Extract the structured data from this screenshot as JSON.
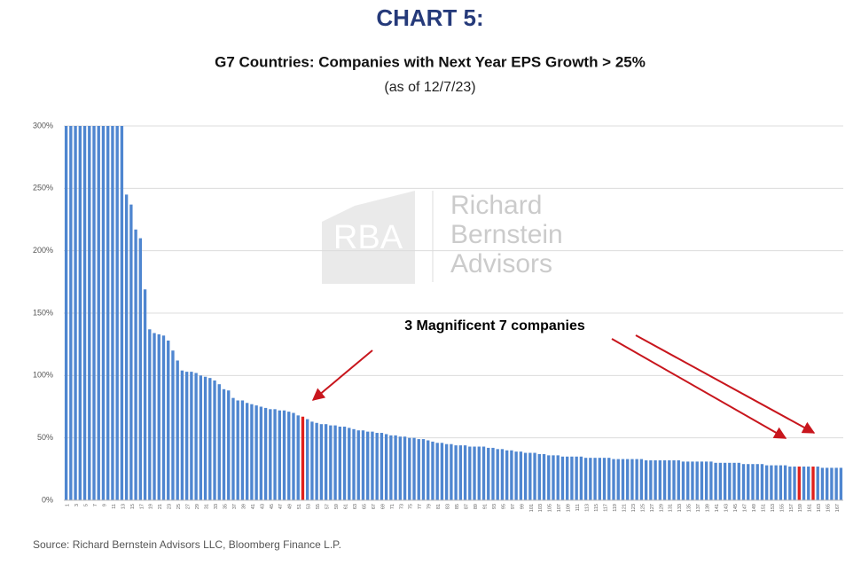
{
  "chart_data": {
    "type": "bar",
    "title": "CHART 5:",
    "subtitle": "G7 Countries: Companies with Next Year EPS Growth > 25%",
    "date_note": "(as of 12/7/23)",
    "annotation": "3 Magnificent 7 companies",
    "watermark": {
      "logo": "RBA",
      "lines": [
        "Richard",
        "Bernstein",
        "Advisors"
      ]
    },
    "source": "Source: Richard Bernstein Advisors LLC, Bloomberg Finance L.P.",
    "ylim": [
      0,
      300
    ],
    "yticks": [
      {
        "value": 0,
        "label": "0%"
      },
      {
        "value": 50,
        "label": "50%"
      },
      {
        "value": 100,
        "label": "100%"
      },
      {
        "value": 150,
        "label": "150%"
      },
      {
        "value": 200,
        "label": "200%"
      },
      {
        "value": 250,
        "label": "250%"
      },
      {
        "value": 300,
        "label": "300%"
      }
    ],
    "grid": true,
    "categories": [
      1,
      null,
      3,
      null,
      5,
      null,
      7,
      null,
      9,
      null,
      11,
      null,
      13,
      null,
      15,
      null,
      17,
      null,
      19,
      null,
      21,
      null,
      23,
      null,
      25,
      null,
      27,
      null,
      29,
      null,
      31,
      null,
      33,
      null,
      35,
      null,
      37,
      null,
      39,
      null,
      41,
      null,
      43,
      null,
      45,
      null,
      47,
      null,
      49,
      null,
      51,
      null,
      53,
      null,
      55,
      null,
      57,
      null,
      59,
      null,
      61,
      null,
      63,
      null,
      65,
      null,
      67,
      null,
      69,
      null,
      71,
      null,
      73,
      null,
      75,
      null,
      77,
      null,
      79,
      null,
      81,
      null,
      83,
      null,
      85,
      null,
      87,
      null,
      89,
      null,
      91,
      null,
      93,
      null,
      95,
      null,
      97,
      null,
      99,
      null,
      101,
      null,
      103,
      null,
      105,
      null,
      107,
      null,
      109,
      null,
      111,
      null,
      113,
      null,
      115,
      null,
      117,
      null,
      119,
      null,
      121,
      null,
      123,
      null,
      125,
      null,
      127,
      null,
      129,
      null,
      131,
      null,
      133,
      null,
      135,
      null,
      137,
      null,
      139,
      null,
      141,
      null,
      143,
      null,
      145,
      null,
      147,
      null,
      149,
      null,
      151,
      null,
      153,
      null,
      155,
      null,
      157,
      null,
      159,
      null,
      161,
      null,
      163,
      null,
      165,
      null,
      167,
      null
    ],
    "values": [
      300,
      300,
      300,
      300,
      300,
      300,
      300,
      300,
      300,
      300,
      300,
      300,
      300,
      245,
      237,
      217,
      210,
      169,
      137,
      134,
      133,
      132,
      128,
      120,
      112,
      104,
      103,
      103,
      102,
      100,
      99,
      98,
      96,
      93,
      89,
      88,
      82,
      80,
      80,
      78,
      77,
      76,
      75,
      74,
      73,
      73,
      72,
      72,
      71,
      70,
      68,
      67,
      65,
      63,
      62,
      61,
      61,
      60,
      60,
      59,
      59,
      58,
      57,
      56,
      56,
      55,
      55,
      54,
      54,
      53,
      52,
      52,
      51,
      51,
      50,
      50,
      49,
      49,
      48,
      47,
      46,
      46,
      45,
      45,
      44,
      44,
      44,
      43,
      43,
      43,
      43,
      42,
      42,
      41,
      41,
      40,
      40,
      39,
      39,
      38,
      38,
      38,
      37,
      37,
      36,
      36,
      36,
      35,
      35,
      35,
      35,
      35,
      34,
      34,
      34,
      34,
      34,
      34,
      33,
      33,
      33,
      33,
      33,
      33,
      33,
      32,
      32,
      32,
      32,
      32,
      32,
      32,
      32,
      31,
      31,
      31,
      31,
      31,
      31,
      31,
      30,
      30,
      30,
      30,
      30,
      30,
      29,
      29,
      29,
      29,
      29,
      28,
      28,
      28,
      28,
      28,
      27,
      27,
      27,
      27,
      27,
      27,
      27,
      26,
      26,
      26,
      26,
      26
    ],
    "colors": [
      "#4f86d0",
      "#4f86d0",
      "#4f86d0",
      "#4f86d0",
      "#4f86d0",
      "#4f86d0",
      "#4f86d0",
      "#4f86d0",
      "#4f86d0",
      "#4f86d0",
      "#4f86d0",
      "#4f86d0",
      "#4f86d0",
      "#4f86d0",
      "#4f86d0",
      "#4f86d0",
      "#4f86d0",
      "#4f86d0",
      "#4f86d0",
      "#4f86d0",
      "#4f86d0",
      "#4f86d0",
      "#4f86d0",
      "#4f86d0",
      "#4f86d0",
      "#4f86d0",
      "#4f86d0",
      "#4f86d0",
      "#4f86d0",
      "#4f86d0",
      "#4f86d0",
      "#4f86d0",
      "#4f86d0",
      "#4f86d0",
      "#4f86d0",
      "#4f86d0",
      "#4f86d0",
      "#4f86d0",
      "#4f86d0",
      "#4f86d0",
      "#4f86d0",
      "#4f86d0",
      "#4f86d0",
      "#4f86d0",
      "#4f86d0",
      "#4f86d0",
      "#4f86d0",
      "#4f86d0",
      "#4f86d0",
      "#4f86d0",
      "#4f86d0",
      "#e0201b",
      "#4f86d0",
      "#4f86d0",
      "#4f86d0",
      "#4f86d0",
      "#4f86d0",
      "#4f86d0",
      "#4f86d0",
      "#4f86d0",
      "#4f86d0",
      "#4f86d0",
      "#4f86d0",
      "#4f86d0",
      "#4f86d0",
      "#4f86d0",
      "#4f86d0",
      "#4f86d0",
      "#4f86d0",
      "#4f86d0",
      "#4f86d0",
      "#4f86d0",
      "#4f86d0",
      "#4f86d0",
      "#4f86d0",
      "#4f86d0",
      "#4f86d0",
      "#4f86d0",
      "#4f86d0",
      "#4f86d0",
      "#4f86d0",
      "#4f86d0",
      "#4f86d0",
      "#4f86d0",
      "#4f86d0",
      "#4f86d0",
      "#4f86d0",
      "#4f86d0",
      "#4f86d0",
      "#4f86d0",
      "#4f86d0",
      "#4f86d0",
      "#4f86d0",
      "#4f86d0",
      "#4f86d0",
      "#4f86d0",
      "#4f86d0",
      "#4f86d0",
      "#4f86d0",
      "#4f86d0",
      "#4f86d0",
      "#4f86d0",
      "#4f86d0",
      "#4f86d0",
      "#4f86d0",
      "#4f86d0",
      "#4f86d0",
      "#4f86d0",
      "#4f86d0",
      "#4f86d0",
      "#4f86d0",
      "#4f86d0",
      "#4f86d0",
      "#4f86d0",
      "#4f86d0",
      "#4f86d0",
      "#4f86d0",
      "#4f86d0",
      "#4f86d0",
      "#4f86d0",
      "#4f86d0",
      "#4f86d0",
      "#4f86d0",
      "#4f86d0",
      "#4f86d0",
      "#4f86d0",
      "#4f86d0",
      "#4f86d0",
      "#4f86d0",
      "#4f86d0",
      "#4f86d0",
      "#4f86d0",
      "#4f86d0",
      "#4f86d0",
      "#4f86d0",
      "#4f86d0",
      "#4f86d0",
      "#4f86d0",
      "#4f86d0",
      "#4f86d0",
      "#4f86d0",
      "#4f86d0",
      "#4f86d0",
      "#4f86d0",
      "#4f86d0",
      "#4f86d0",
      "#4f86d0",
      "#4f86d0",
      "#4f86d0",
      "#4f86d0",
      "#4f86d0",
      "#4f86d0",
      "#4f86d0",
      "#4f86d0",
      "#4f86d0",
      "#4f86d0",
      "#4f86d0",
      "#4f86d0",
      "#e0201b",
      "#4f86d0",
      "#4f86d0",
      "#e0201b",
      "#4f86d0",
      "#4f86d0",
      "#4f86d0",
      "#4f86d0",
      "#4f86d0",
      "#4f86d0"
    ]
  }
}
